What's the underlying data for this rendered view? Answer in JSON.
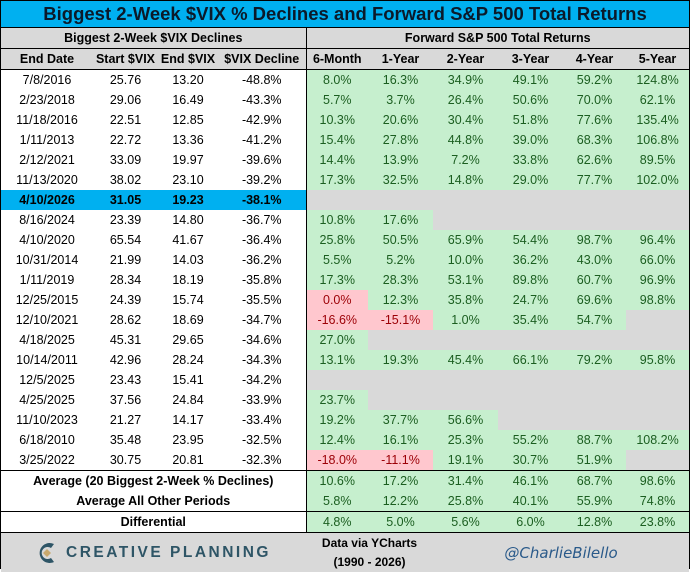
{
  "title": "Biggest 2-Week $VIX % Declines and Forward S&P 500 Total Returns",
  "left_header": "Biggest 2-Week $VIX Declines",
  "right_header": "Forward S&P 500 Total Returns",
  "columns": [
    "End Date",
    "Start $VIX",
    "End $VIX",
    "$VIX Decline",
    "6-Month",
    "1-Year",
    "2-Year",
    "3-Year",
    "4-Year",
    "5-Year"
  ],
  "colors": {
    "title_bg": "#00b0f0",
    "positive_bg": "#c6efce",
    "negative_bg": "#ffc7ce",
    "empty_bg": "#d9d9d9"
  },
  "highlight_row": "4/10/2026",
  "rows": [
    [
      "7/8/2016",
      "25.76",
      "13.20",
      "-48.8%",
      "8.0%",
      "16.3%",
      "34.9%",
      "49.1%",
      "59.2%",
      "124.8%"
    ],
    [
      "2/23/2018",
      "29.06",
      "16.49",
      "-43.3%",
      "5.7%",
      "3.7%",
      "26.4%",
      "50.6%",
      "70.0%",
      "62.1%"
    ],
    [
      "11/18/2016",
      "22.51",
      "12.85",
      "-42.9%",
      "10.3%",
      "20.6%",
      "30.4%",
      "51.8%",
      "77.6%",
      "135.4%"
    ],
    [
      "1/11/2013",
      "22.72",
      "13.36",
      "-41.2%",
      "15.4%",
      "27.8%",
      "44.8%",
      "39.0%",
      "68.3%",
      "106.8%"
    ],
    [
      "2/12/2021",
      "33.09",
      "19.97",
      "-39.6%",
      "14.4%",
      "13.9%",
      "7.2%",
      "33.8%",
      "62.6%",
      "89.5%"
    ],
    [
      "11/13/2020",
      "38.02",
      "23.10",
      "-39.2%",
      "17.3%",
      "32.5%",
      "14.8%",
      "29.0%",
      "77.7%",
      "102.0%"
    ],
    [
      "4/10/2026",
      "31.05",
      "19.23",
      "-38.1%",
      null,
      null,
      null,
      null,
      null,
      null
    ],
    [
      "8/16/2024",
      "23.39",
      "14.80",
      "-36.7%",
      "10.8%",
      "17.6%",
      null,
      null,
      null,
      null
    ],
    [
      "4/10/2020",
      "65.54",
      "41.67",
      "-36.4%",
      "25.8%",
      "50.5%",
      "65.9%",
      "54.4%",
      "98.7%",
      "96.4%"
    ],
    [
      "10/31/2014",
      "21.99",
      "14.03",
      "-36.2%",
      "5.5%",
      "5.2%",
      "10.0%",
      "36.2%",
      "43.0%",
      "66.0%"
    ],
    [
      "1/11/2019",
      "28.34",
      "18.19",
      "-35.8%",
      "17.3%",
      "28.3%",
      "53.1%",
      "89.8%",
      "60.7%",
      "96.9%"
    ],
    [
      "12/25/2015",
      "24.39",
      "15.74",
      "-35.5%",
      "0.0%",
      "12.3%",
      "35.8%",
      "24.7%",
      "69.6%",
      "98.8%"
    ],
    [
      "12/10/2021",
      "28.62",
      "18.69",
      "-34.7%",
      "-16.6%",
      "-15.1%",
      "1.0%",
      "35.4%",
      "54.7%",
      null
    ],
    [
      "4/18/2025",
      "45.31",
      "29.65",
      "-34.6%",
      "27.0%",
      null,
      null,
      null,
      null,
      null
    ],
    [
      "10/14/2011",
      "42.96",
      "28.24",
      "-34.3%",
      "13.1%",
      "19.3%",
      "45.4%",
      "66.1%",
      "79.2%",
      "95.8%"
    ],
    [
      "12/5/2025",
      "23.43",
      "15.41",
      "-34.2%",
      null,
      null,
      null,
      null,
      null,
      null
    ],
    [
      "4/25/2025",
      "37.56",
      "24.84",
      "-33.9%",
      "23.7%",
      null,
      null,
      null,
      null,
      null
    ],
    [
      "11/10/2023",
      "21.27",
      "14.17",
      "-33.4%",
      "19.2%",
      "37.7%",
      "56.6%",
      null,
      null,
      null
    ],
    [
      "6/18/2010",
      "35.48",
      "23.95",
      "-32.5%",
      "12.4%",
      "16.1%",
      "25.3%",
      "55.2%",
      "88.7%",
      "108.2%"
    ],
    [
      "3/25/2022",
      "30.75",
      "20.81",
      "-32.3%",
      "-18.0%",
      "-11.1%",
      "19.1%",
      "30.7%",
      "51.9%",
      null
    ]
  ],
  "summary": [
    {
      "label": "Average (20 Biggest 2-Week % Declines)",
      "values": [
        "10.6%",
        "17.2%",
        "31.4%",
        "46.1%",
        "68.7%",
        "98.6%"
      ]
    },
    {
      "label": "Average All Other Periods",
      "values": [
        "5.8%",
        "12.2%",
        "25.8%",
        "40.1%",
        "55.9%",
        "74.8%"
      ]
    },
    {
      "label": "Differential",
      "values": [
        "4.8%",
        "5.0%",
        "5.6%",
        "6.0%",
        "12.8%",
        "23.8%"
      ]
    }
  ],
  "footer": {
    "logo_text": "CREATIVE PLANNING",
    "source_line1": "Data via YCharts",
    "source_line2": "(1990 - 2026)",
    "handle": "@CharlieBilello"
  }
}
